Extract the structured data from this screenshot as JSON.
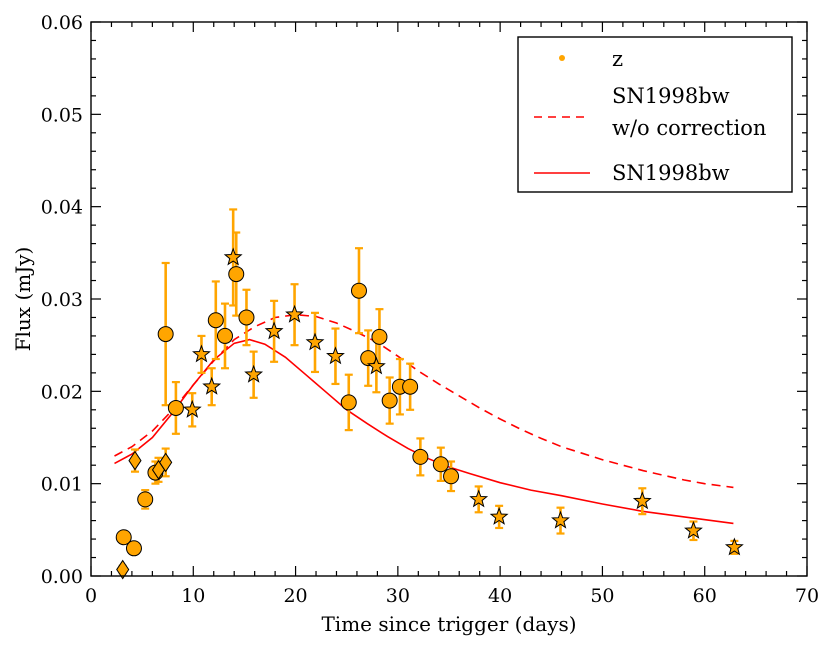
{
  "chart_data": {
    "type": "scatter",
    "xlabel": "Time since trigger (days)",
    "ylabel": "Flux (mJy)",
    "xlim": [
      0,
      70
    ],
    "ylim": [
      0,
      0.06
    ],
    "x_ticks": [
      0,
      10,
      20,
      30,
      40,
      50,
      60,
      70
    ],
    "y_ticks": [
      0.0,
      0.01,
      0.02,
      0.03,
      0.04,
      0.05,
      0.06
    ],
    "x_tick_labels": [
      "0",
      "10",
      "20",
      "30",
      "40",
      "50",
      "60",
      "70"
    ],
    "y_tick_labels": [
      "0.00",
      "0.01",
      "0.02",
      "0.03",
      "0.04",
      "0.05",
      "0.06"
    ],
    "legend": {
      "position": "top-right",
      "entries": [
        {
          "label": "z",
          "kind": "marker"
        },
        {
          "label": "SN1998bw",
          "label2": "w/o correction",
          "kind": "dashed-line"
        },
        {
          "label": "SN1998bw",
          "kind": "solid-line"
        }
      ]
    },
    "colors": {
      "marker_fill": "#FFA500",
      "errorbar": "#FFA500",
      "model": "#FF0000",
      "marker_edge": "#000000"
    },
    "series": [
      {
        "name": "z",
        "markers": "mixed",
        "points": [
          {
            "x": 3.1,
            "y": 0.0007,
            "err": 0.0004,
            "marker": "diamond"
          },
          {
            "x": 3.2,
            "y": 0.0042,
            "err": 0.0005,
            "marker": "circle"
          },
          {
            "x": 4.2,
            "y": 0.003,
            "err": 0.0005,
            "marker": "circle"
          },
          {
            "x": 4.3,
            "y": 0.0125,
            "err": 0.0012,
            "marker": "diamond"
          },
          {
            "x": 5.3,
            "y": 0.0083,
            "err": 0.001,
            "marker": "circle"
          },
          {
            "x": 6.3,
            "y": 0.0112,
            "err": 0.0012,
            "marker": "circle"
          },
          {
            "x": 6.6,
            "y": 0.0115,
            "err": 0.0013,
            "marker": "diamond"
          },
          {
            "x": 7.3,
            "y": 0.0123,
            "err": 0.0015,
            "marker": "diamond"
          },
          {
            "x": 7.3,
            "y": 0.0262,
            "err": 0.0077,
            "marker": "circle"
          },
          {
            "x": 8.3,
            "y": 0.0182,
            "err": 0.0028,
            "marker": "circle"
          },
          {
            "x": 9.9,
            "y": 0.018,
            "err": 0.0018,
            "marker": "star"
          },
          {
            "x": 10.8,
            "y": 0.024,
            "err": 0.002,
            "marker": "star"
          },
          {
            "x": 11.8,
            "y": 0.0205,
            "err": 0.002,
            "marker": "star"
          },
          {
            "x": 12.2,
            "y": 0.0277,
            "err": 0.0042,
            "marker": "circle"
          },
          {
            "x": 13.1,
            "y": 0.026,
            "err": 0.0035,
            "marker": "circle"
          },
          {
            "x": 13.9,
            "y": 0.0345,
            "err": 0.0052,
            "marker": "star"
          },
          {
            "x": 14.2,
            "y": 0.0327,
            "err": 0.0045,
            "marker": "circle"
          },
          {
            "x": 15.2,
            "y": 0.028,
            "err": 0.003,
            "marker": "circle"
          },
          {
            "x": 15.9,
            "y": 0.0218,
            "err": 0.0025,
            "marker": "star"
          },
          {
            "x": 17.9,
            "y": 0.0265,
            "err": 0.0033,
            "marker": "star"
          },
          {
            "x": 19.9,
            "y": 0.0283,
            "err": 0.0033,
            "marker": "star"
          },
          {
            "x": 21.9,
            "y": 0.0253,
            "err": 0.0032,
            "marker": "star"
          },
          {
            "x": 23.9,
            "y": 0.0238,
            "err": 0.003,
            "marker": "star"
          },
          {
            "x": 25.2,
            "y": 0.0188,
            "err": 0.003,
            "marker": "circle"
          },
          {
            "x": 26.2,
            "y": 0.0309,
            "err": 0.0046,
            "marker": "circle"
          },
          {
            "x": 27.1,
            "y": 0.0236,
            "err": 0.003,
            "marker": "circle"
          },
          {
            "x": 27.9,
            "y": 0.0227,
            "err": 0.0028,
            "marker": "star"
          },
          {
            "x": 28.2,
            "y": 0.0259,
            "err": 0.003,
            "marker": "circle"
          },
          {
            "x": 29.2,
            "y": 0.019,
            "err": 0.0025,
            "marker": "circle"
          },
          {
            "x": 30.2,
            "y": 0.0205,
            "err": 0.003,
            "marker": "circle"
          },
          {
            "x": 31.2,
            "y": 0.0205,
            "err": 0.0025,
            "marker": "circle"
          },
          {
            "x": 32.2,
            "y": 0.0129,
            "err": 0.002,
            "marker": "circle"
          },
          {
            "x": 34.2,
            "y": 0.0121,
            "err": 0.0018,
            "marker": "circle"
          },
          {
            "x": 35.2,
            "y": 0.0108,
            "err": 0.0016,
            "marker": "circle"
          },
          {
            "x": 37.9,
            "y": 0.0083,
            "err": 0.0014,
            "marker": "star"
          },
          {
            "x": 39.9,
            "y": 0.0064,
            "err": 0.0012,
            "marker": "star"
          },
          {
            "x": 45.9,
            "y": 0.006,
            "err": 0.0014,
            "marker": "star"
          },
          {
            "x": 53.9,
            "y": 0.0081,
            "err": 0.0014,
            "marker": "star"
          },
          {
            "x": 58.9,
            "y": 0.0049,
            "err": 0.001,
            "marker": "star"
          },
          {
            "x": 62.9,
            "y": 0.0031,
            "err": 0.0007,
            "marker": "star"
          }
        ]
      },
      {
        "name": "SN1998bw w/o correction",
        "style": "dashed",
        "x": [
          2.3,
          4,
          6,
          8,
          10,
          12,
          14,
          16,
          18,
          20,
          22,
          24,
          26,
          28,
          30,
          32,
          34,
          36,
          38,
          40,
          42,
          44,
          46,
          48,
          50,
          52,
          54,
          56,
          58,
          60,
          62.8
        ],
        "y": [
          0.013,
          0.014,
          0.0157,
          0.018,
          0.0207,
          0.0233,
          0.0256,
          0.027,
          0.028,
          0.0283,
          0.0281,
          0.0274,
          0.0264,
          0.0253,
          0.0238,
          0.0222,
          0.0208,
          0.0195,
          0.0182,
          0.017,
          0.0159,
          0.0149,
          0.014,
          0.0133,
          0.0126,
          0.012,
          0.0114,
          0.0109,
          0.0104,
          0.01,
          0.0096
        ]
      },
      {
        "name": "SN1998bw",
        "style": "solid",
        "x": [
          2.3,
          4,
          6,
          8,
          10,
          12,
          14,
          15.5,
          17,
          19,
          21,
          23,
          25,
          27,
          29,
          31,
          33,
          35,
          37,
          40,
          43,
          46,
          50,
          54,
          58,
          62.8
        ],
        "y": [
          0.0122,
          0.0132,
          0.015,
          0.0177,
          0.0207,
          0.0234,
          0.0252,
          0.0256,
          0.0251,
          0.0237,
          0.0218,
          0.0199,
          0.018,
          0.0165,
          0.0151,
          0.0138,
          0.0127,
          0.0118,
          0.0111,
          0.0101,
          0.0093,
          0.0087,
          0.0078,
          0.007,
          0.0064,
          0.0057
        ]
      }
    ]
  }
}
